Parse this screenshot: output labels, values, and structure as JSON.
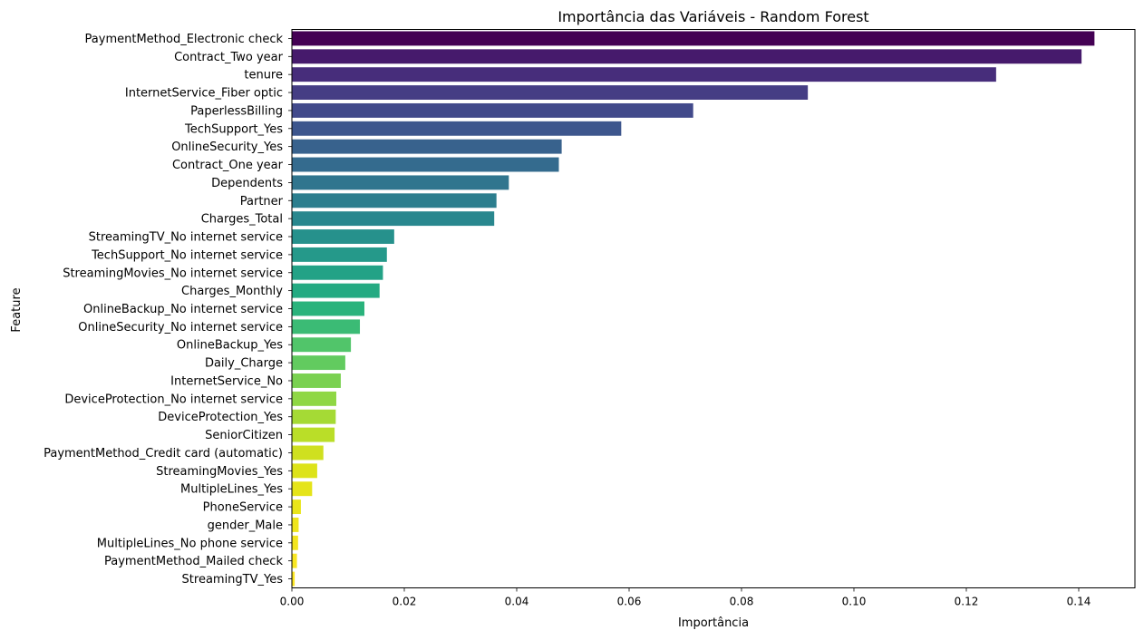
{
  "chart_data": {
    "type": "bar",
    "orientation": "horizontal",
    "title": "Importância das Variáveis - Random Forest",
    "xlabel": "Importância",
    "ylabel": "Feature",
    "xlim": [
      0,
      0.15
    ],
    "x_ticks": [
      "0.00",
      "0.02",
      "0.04",
      "0.06",
      "0.08",
      "0.10",
      "0.12",
      "0.14"
    ],
    "x_tick_values": [
      0,
      0.02,
      0.04,
      0.06,
      0.08,
      0.1,
      0.12,
      0.14
    ],
    "grid": false,
    "legend": "none",
    "palette": "viridis",
    "categories": [
      "PaymentMethod_Electronic check",
      "Contract_Two year",
      "tenure",
      "InternetService_Fiber optic",
      "PaperlessBilling",
      "TechSupport_Yes",
      "OnlineSecurity_Yes",
      "Contract_One year",
      "Dependents",
      "Partner",
      "Charges_Total",
      "StreamingTV_No internet service",
      "TechSupport_No internet service",
      "StreamingMovies_No internet service",
      "Charges_Monthly",
      "OnlineBackup_No internet service",
      "OnlineSecurity_No internet service",
      "OnlineBackup_Yes",
      "Daily_Charge",
      "InternetService_No",
      "DeviceProtection_No internet service",
      "DeviceProtection_Yes",
      "SeniorCitizen",
      "PaymentMethod_Credit card (automatic)",
      "StreamingMovies_Yes",
      "MultipleLines_Yes",
      "PhoneService",
      "gender_Male",
      "MultipleLines_No phone service",
      "PaymentMethod_Mailed check",
      "StreamingTV_Yes"
    ],
    "values": [
      0.1428,
      0.1405,
      0.1253,
      0.0918,
      0.0714,
      0.0586,
      0.048,
      0.0475,
      0.0386,
      0.0364,
      0.036,
      0.0182,
      0.0169,
      0.0162,
      0.0156,
      0.0129,
      0.0121,
      0.0105,
      0.0095,
      0.0087,
      0.0079,
      0.0078,
      0.0076,
      0.0056,
      0.0045,
      0.0036,
      0.0016,
      0.0012,
      0.0011,
      0.0009,
      0.0005
    ],
    "colors": [
      "#440154",
      "#461a6c",
      "#472d7b",
      "#453d84",
      "#424a8b",
      "#3d568d",
      "#38628d",
      "#346b8e",
      "#30758e",
      "#2c7e8e",
      "#29878e",
      "#26918c",
      "#25998a",
      "#23a286",
      "#24aa82",
      "#2ab37c",
      "#3bbb75",
      "#51c56a",
      "#62cb5f",
      "#7ad151",
      "#8fd744",
      "#a5da35",
      "#bade28",
      "#cfe01f",
      "#dde318",
      "#e5e419",
      "#e9e51a",
      "#eee51b",
      "#f3e51e",
      "#f8e621",
      "#fde725"
    ]
  }
}
